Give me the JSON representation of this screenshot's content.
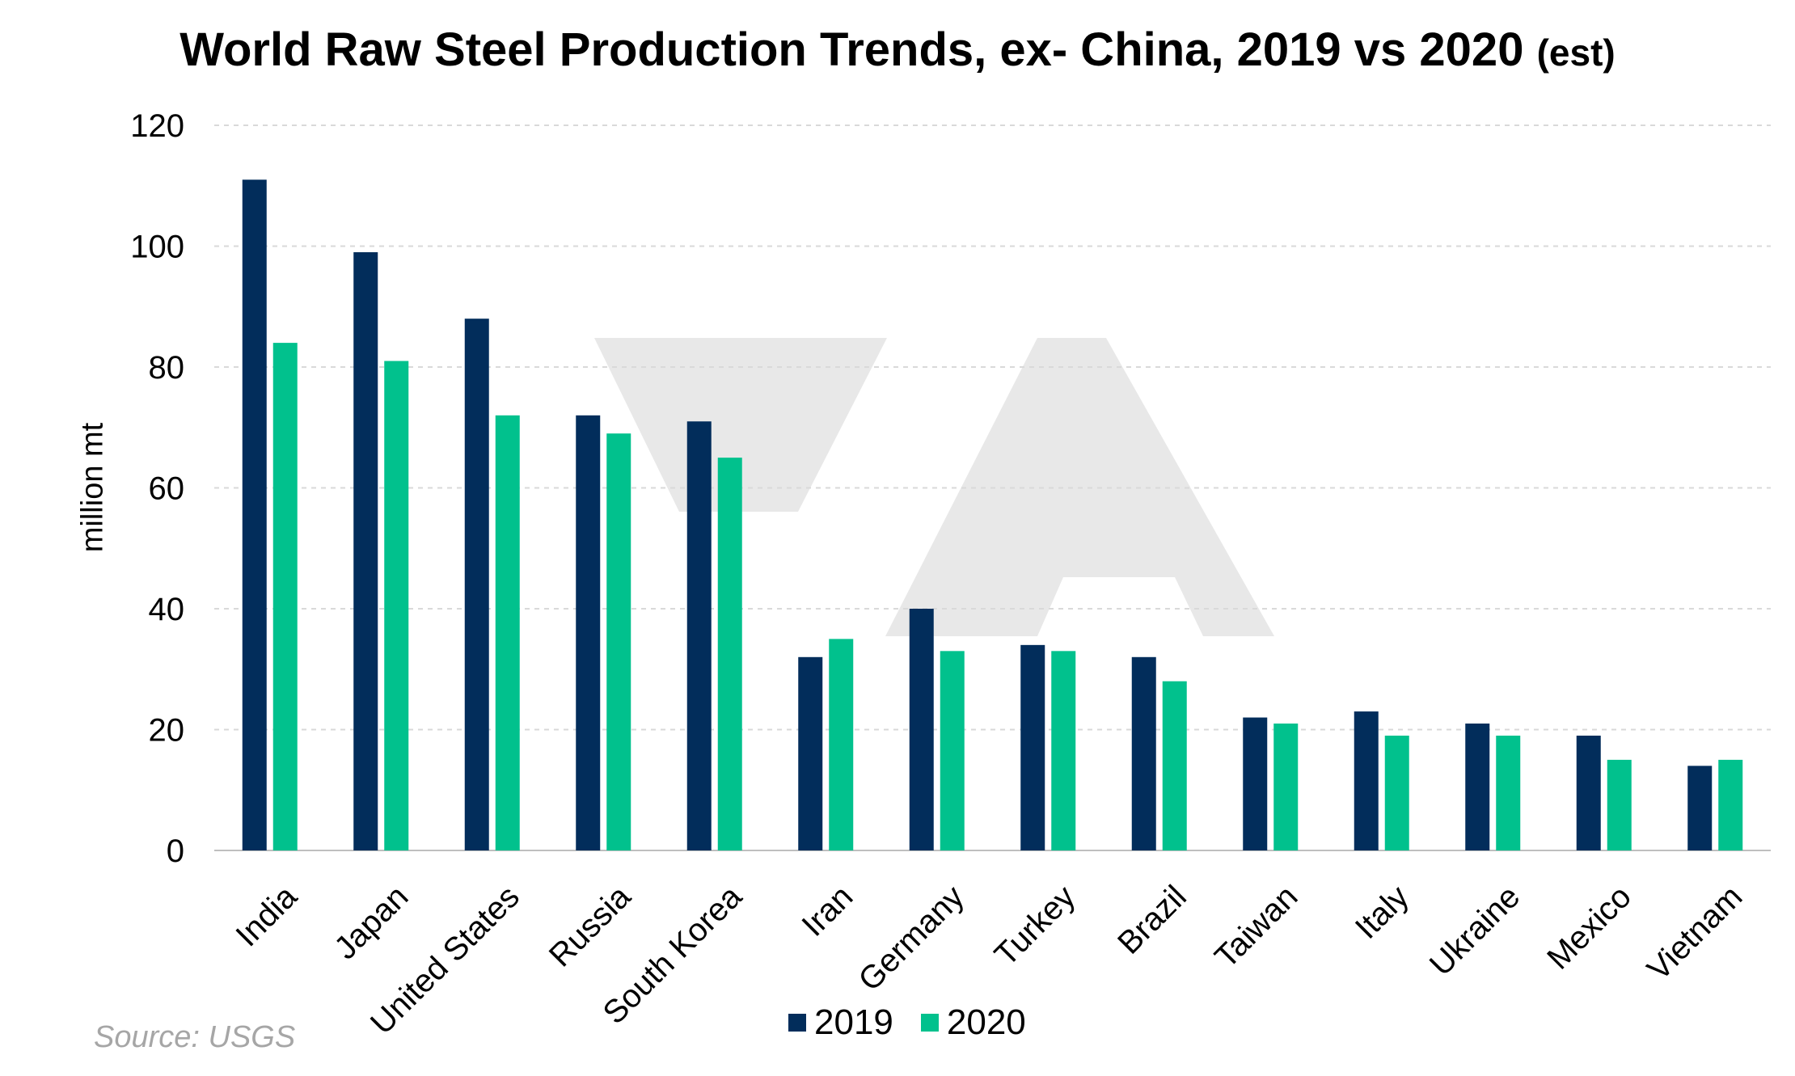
{
  "chart_data": {
    "type": "bar",
    "title": "World Raw Steel Production Trends, ex- China, 2019 vs 2020",
    "title_suffix": "(est)",
    "xlabel": "",
    "ylabel": "million mt",
    "ylim": [
      0,
      120
    ],
    "yticks": [
      0,
      20,
      40,
      60,
      80,
      100,
      120
    ],
    "grid": true,
    "legend_position": "bottom",
    "categories": [
      "India",
      "Japan",
      "United States",
      "Russia",
      "South Korea",
      "Iran",
      "Germany",
      "Turkey",
      "Brazil",
      "Taiwan",
      "Italy",
      "Ukraine",
      "Mexico",
      "Vietnam"
    ],
    "series": [
      {
        "name": "2019",
        "color": "#022d5b",
        "values": [
          111,
          99,
          88,
          72,
          71,
          32,
          40,
          34,
          32,
          22,
          23,
          21,
          19,
          14
        ]
      },
      {
        "name": "2020",
        "color": "#01c18d",
        "values": [
          84,
          81,
          72,
          69,
          65,
          35,
          33,
          33,
          28,
          21,
          19,
          19,
          15,
          15
        ]
      }
    ]
  },
  "source": "Source: USGS",
  "colors": {
    "gridline": "#d9d9d9",
    "axis": "#bfbfbf",
    "watermark": "#e8e8e8",
    "source_text": "#a6a6a6"
  }
}
